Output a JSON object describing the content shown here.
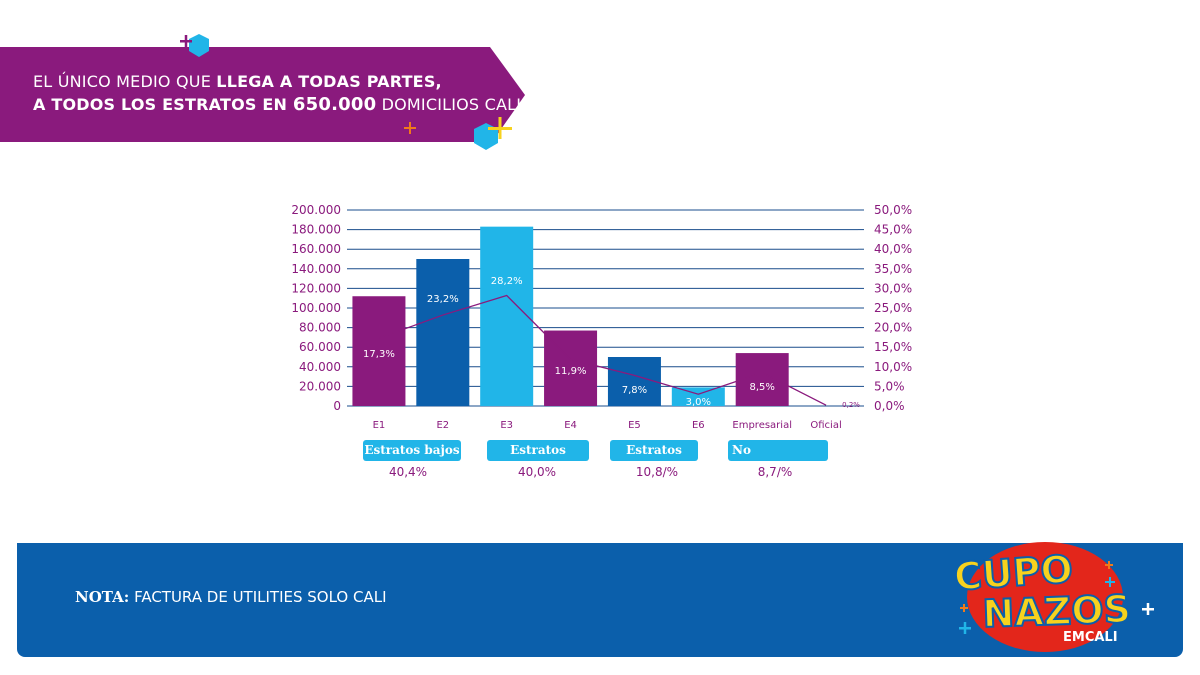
{
  "banner": {
    "line1_normal": "EL ÚNICO MEDIO QUE ",
    "line1_bold": "LLEGA A TODAS PARTES,",
    "line2_bold": "A TODOS LOS ESTRATOS EN ",
    "line2_number": "650.000",
    "line2_normal": " DOMICILIOS CALI"
  },
  "colors": {
    "purple": "#8a1a7d",
    "dark_blue": "#0b5fab",
    "light_blue": "#21b5e8",
    "axis_blue": "#1a4d8c",
    "yellow": "#f7d21e",
    "orange": "#f07a1a",
    "red": "#e3261b"
  },
  "chart_data": {
    "type": "bar",
    "categories": [
      "E1",
      "E2",
      "E3",
      "E4",
      "E5",
      "E6",
      "Empresarial",
      "Oficial"
    ],
    "values": [
      112000,
      150000,
      183000,
      77000,
      50000,
      19000,
      54000,
      1000
    ],
    "percent_labels": [
      "17,3%",
      "23,2%",
      "28,2%",
      "11,9%",
      "7,8%",
      "3,0%",
      "8,5%",
      "0,2%"
    ],
    "percent_values": [
      17.3,
      23.2,
      28.2,
      11.9,
      7.8,
      3.0,
      8.5,
      0.2
    ],
    "bar_colors": [
      "#8a1a7d",
      "#0b5fab",
      "#21b5e8",
      "#8a1a7d",
      "#0b5fab",
      "#21b5e8",
      "#8a1a7d",
      "#8a1a7d"
    ],
    "ylim": [
      0,
      200000
    ],
    "y2lim": [
      0,
      50
    ],
    "y_ticks": [
      "0",
      "20.000",
      "40.000",
      "60.000",
      "80.000",
      "100.000",
      "120.000",
      "140.000",
      "160.000",
      "180.000",
      "200.000"
    ],
    "y2_ticks": [
      "0,0%",
      "5,0%",
      "10,0%",
      "15,0%",
      "20,0%",
      "25,0%",
      "30,0%",
      "35,0%",
      "40,0%",
      "45,0%",
      "50,0%"
    ],
    "grid": true
  },
  "groups": [
    {
      "label": "Estratos bajos",
      "pct": "40,4%"
    },
    {
      "label": "Estratos medios",
      "pct": "40,0%"
    },
    {
      "label": "Estratos altos",
      "pct": "10,8/%"
    },
    {
      "label": "No residencial",
      "pct": "8,7/%"
    }
  ],
  "footer": {
    "note_label": "NOTA:",
    "note_text": " FACTURA DE UTILITIES SOLO CALI"
  },
  "logo": {
    "line1": "CUPO",
    "line2": "NAZOS",
    "line3": "EMCALI"
  }
}
